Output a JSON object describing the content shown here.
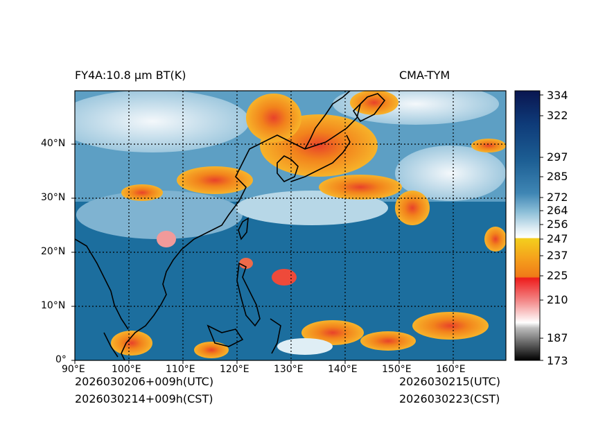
{
  "header": {
    "product": "FY4A:10.8 μm BT(K)",
    "model": "CMA-TYM"
  },
  "footer": {
    "init_utc": "2026030206+009h(UTC)",
    "init_cst": "2026030214+009h(CST)",
    "valid_utc": "2026030215(UTC)",
    "valid_cst": "2026030223(CST)"
  },
  "axes": {
    "x_ticks": [
      "90°E",
      "100°E",
      "110°E",
      "120°E",
      "130°E",
      "140°E",
      "150°E",
      "160°E"
    ],
    "y_ticks": [
      "0°",
      "10°N",
      "20°N",
      "30°N",
      "40°N"
    ],
    "lon_range": [
      90,
      170
    ],
    "lat_range": [
      0,
      50
    ]
  },
  "colorbar": {
    "ticks": [
      "334",
      "322",
      "297",
      "285",
      "272",
      "264",
      "256",
      "247",
      "237",
      "225",
      "210",
      "187",
      "173"
    ],
    "range": [
      173,
      334
    ],
    "colors": {
      "navy": "#0a1650",
      "deep_blue": "#1d4f8a",
      "mid_blue": "#3f86b4",
      "light_blue": "#a6cfe2",
      "white": "#ffffff",
      "yellow": "#f3cf1d",
      "orange": "#f08c1a",
      "red": "#ee1c1c",
      "pink": "#f7b7b7",
      "black": "#000000"
    }
  },
  "colors": {
    "sea": "#1c6e9e",
    "coast": "#000000",
    "cloud_orange": "#f59a1f",
    "cloud_red": "#e8422a",
    "cloud_white": "#e7f0f5"
  }
}
